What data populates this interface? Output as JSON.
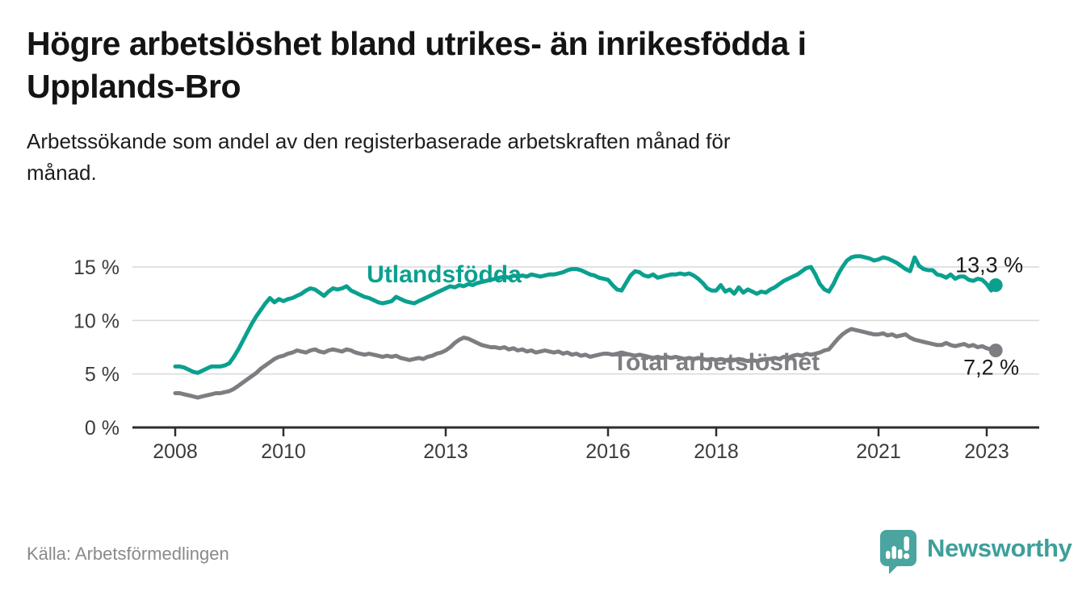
{
  "header": {
    "title_lines": [
      "Högre arbetslöshet bland utrikes- än inrikesfödda i",
      "Upplands-Bro"
    ],
    "subtitle_lines": [
      "Arbetssökande som andel av den registerbaserade arbetskraften månad för",
      "månad."
    ]
  },
  "footer": {
    "source": "Källa: Arbetsförmedlingen",
    "brand_name": "Newsworthy"
  },
  "colors": {
    "teal_line": "#0aa08f",
    "gray_line": "#7d7d82",
    "brand_teal": "#3f9f9a",
    "gridline": "#d9d9d9",
    "axis": "#2e2e2e"
  },
  "chart_data": {
    "type": "line",
    "title": "Högre arbetslöshet bland utrikes- än inrikesfödda i Upplands-Bro",
    "subtitle": "Arbetssökande som andel av den registerbaserade arbetskraften månad för månad.",
    "x_unit": "month",
    "x_start_year": 2008,
    "x_end": "2023-03",
    "x_ticks": [
      2008,
      2010,
      2013,
      2016,
      2018,
      2021,
      2023
    ],
    "y_ticks": [
      0,
      5,
      10,
      15
    ],
    "y_tick_suffix": " %",
    "ylim": [
      0,
      16.8
    ],
    "grid": true,
    "legend_position": "inline-labels",
    "series": [
      {
        "name": "Utlandsfödda",
        "color": "#0aa08f",
        "end_label": "13,3 %",
        "end_value": 13.3,
        "values": [
          5.7,
          5.7,
          5.6,
          5.4,
          5.2,
          5.1,
          5.3,
          5.5,
          5.7,
          5.7,
          5.7,
          5.8,
          6.0,
          6.6,
          7.3,
          8.1,
          8.9,
          9.7,
          10.4,
          11.0,
          11.6,
          12.1,
          11.7,
          12.0,
          11.8,
          12.0,
          12.1,
          12.3,
          12.5,
          12.8,
          13.0,
          12.9,
          12.6,
          12.3,
          12.7,
          13.0,
          12.9,
          13.0,
          13.2,
          12.8,
          12.6,
          12.4,
          12.2,
          12.1,
          11.9,
          11.7,
          11.6,
          11.7,
          11.8,
          12.2,
          12.0,
          11.8,
          11.7,
          11.6,
          11.8,
          12.0,
          12.2,
          12.4,
          12.6,
          12.8,
          13.0,
          13.2,
          13.1,
          13.3,
          13.2,
          13.4,
          13.3,
          13.5,
          13.6,
          13.7,
          13.8,
          13.9,
          14.0,
          14.1,
          14.0,
          14.2,
          14.1,
          14.2,
          14.1,
          14.3,
          14.2,
          14.1,
          14.2,
          14.3,
          14.3,
          14.4,
          14.5,
          14.7,
          14.8,
          14.8,
          14.7,
          14.5,
          14.3,
          14.2,
          14.0,
          13.9,
          13.8,
          13.3,
          12.9,
          12.8,
          13.5,
          14.2,
          14.6,
          14.5,
          14.2,
          14.1,
          14.3,
          14.0,
          14.1,
          14.2,
          14.3,
          14.3,
          14.4,
          14.3,
          14.4,
          14.2,
          13.9,
          13.5,
          13.0,
          12.8,
          12.8,
          13.3,
          12.7,
          12.9,
          12.5,
          13.1,
          12.6,
          12.9,
          12.7,
          12.5,
          12.7,
          12.6,
          12.9,
          13.1,
          13.4,
          13.7,
          13.9,
          14.1,
          14.3,
          14.6,
          14.9,
          15.0,
          14.3,
          13.4,
          12.9,
          12.7,
          13.4,
          14.3,
          15.0,
          15.6,
          15.9,
          16.0,
          16.0,
          15.9,
          15.8,
          15.6,
          15.7,
          15.9,
          15.8,
          15.6,
          15.4,
          15.1,
          14.8,
          14.6,
          15.9,
          15.1,
          14.8,
          14.7,
          14.7,
          14.3,
          14.2,
          14.0,
          14.3,
          13.9,
          14.1,
          14.1,
          13.8,
          13.7,
          13.9,
          13.8,
          13.4,
          12.8,
          13.3
        ]
      },
      {
        "name": "Total arbetslöshet",
        "color": "#7d7d82",
        "end_label": "7,2 %",
        "end_value": 7.2,
        "values": [
          3.2,
          3.2,
          3.1,
          3.0,
          2.9,
          2.8,
          2.9,
          3.0,
          3.1,
          3.2,
          3.2,
          3.3,
          3.4,
          3.6,
          3.9,
          4.2,
          4.5,
          4.8,
          5.1,
          5.5,
          5.8,
          6.1,
          6.4,
          6.6,
          6.7,
          6.9,
          7.0,
          7.2,
          7.1,
          7.0,
          7.2,
          7.3,
          7.1,
          7.0,
          7.2,
          7.3,
          7.2,
          7.1,
          7.3,
          7.2,
          7.0,
          6.9,
          6.8,
          6.9,
          6.8,
          6.7,
          6.6,
          6.7,
          6.6,
          6.7,
          6.5,
          6.4,
          6.3,
          6.4,
          6.5,
          6.4,
          6.6,
          6.7,
          6.9,
          7.0,
          7.2,
          7.5,
          7.9,
          8.2,
          8.4,
          8.3,
          8.1,
          7.9,
          7.7,
          7.6,
          7.5,
          7.5,
          7.4,
          7.5,
          7.3,
          7.4,
          7.2,
          7.3,
          7.1,
          7.2,
          7.0,
          7.1,
          7.2,
          7.1,
          7.0,
          7.1,
          6.9,
          7.0,
          6.8,
          6.9,
          6.7,
          6.8,
          6.6,
          6.7,
          6.8,
          6.9,
          6.9,
          6.8,
          6.9,
          7.0,
          6.9,
          6.8,
          6.7,
          6.8,
          6.7,
          6.6,
          6.5,
          6.6,
          6.5,
          6.6,
          6.5,
          6.6,
          6.5,
          6.4,
          6.5,
          6.4,
          6.5,
          6.4,
          6.3,
          6.4,
          6.3,
          6.4,
          6.3,
          6.2,
          6.3,
          6.4,
          6.3,
          6.2,
          6.3,
          6.2,
          6.3,
          6.4,
          6.4,
          6.5,
          6.4,
          6.6,
          6.5,
          6.7,
          6.8,
          6.7,
          6.9,
          6.8,
          6.9,
          7.0,
          7.2,
          7.3,
          7.8,
          8.3,
          8.7,
          9.0,
          9.2,
          9.1,
          9.0,
          8.9,
          8.8,
          8.7,
          8.7,
          8.8,
          8.6,
          8.7,
          8.5,
          8.6,
          8.7,
          8.4,
          8.2,
          8.1,
          8.0,
          7.9,
          7.8,
          7.7,
          7.7,
          7.9,
          7.7,
          7.6,
          7.7,
          7.8,
          7.6,
          7.7,
          7.5,
          7.6,
          7.4,
          7.3,
          7.2
        ]
      }
    ]
  }
}
